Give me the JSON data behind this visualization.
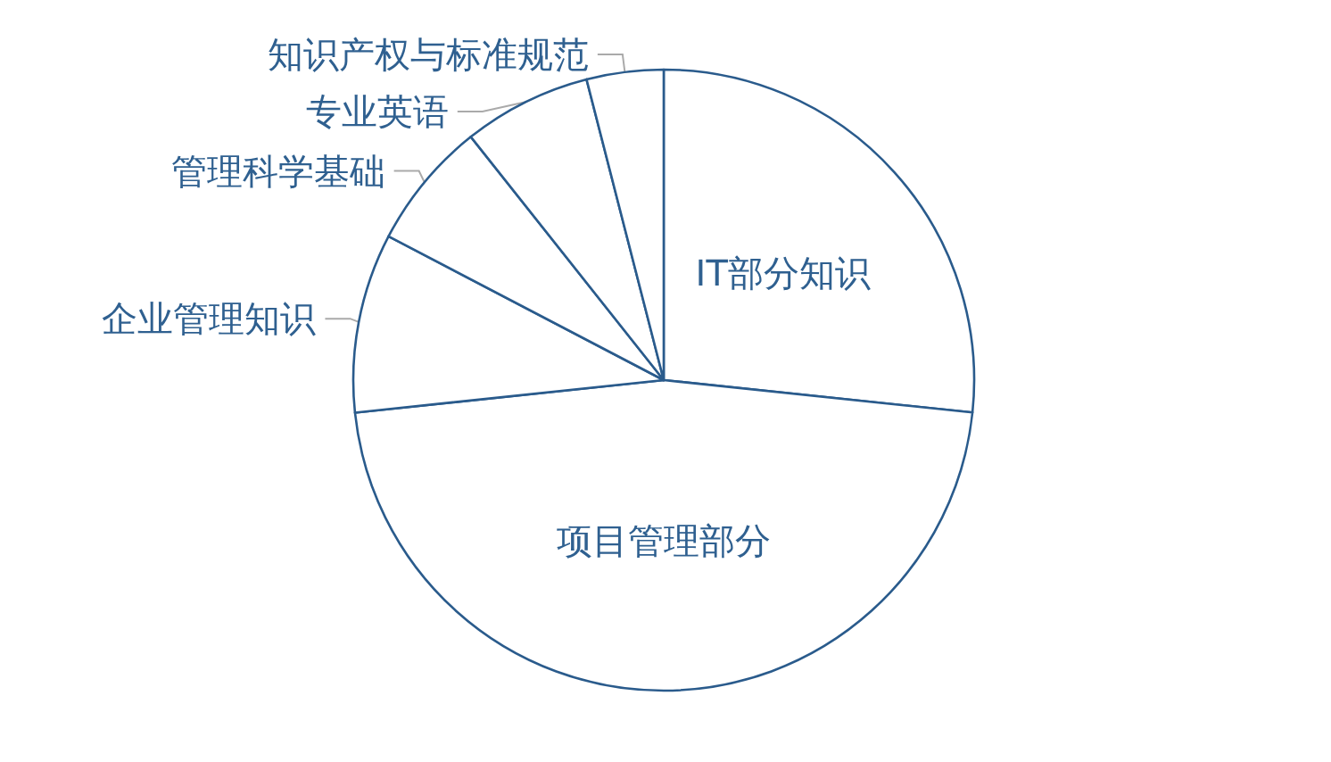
{
  "chart_data": {
    "type": "pie",
    "categories": [
      "IT部分知识",
      "项目管理部分",
      "企业管理知识",
      "管理科学基础",
      "专业英语",
      "知识产权与标准规范"
    ],
    "values": [
      26.66,
      46.67,
      9.33,
      6.67,
      6.67,
      4.0
    ],
    "colors": [
      "#ffffff",
      "#ffffff",
      "#ffffff",
      "#ffffff",
      "#ffffff",
      "#ffffff"
    ]
  }
}
